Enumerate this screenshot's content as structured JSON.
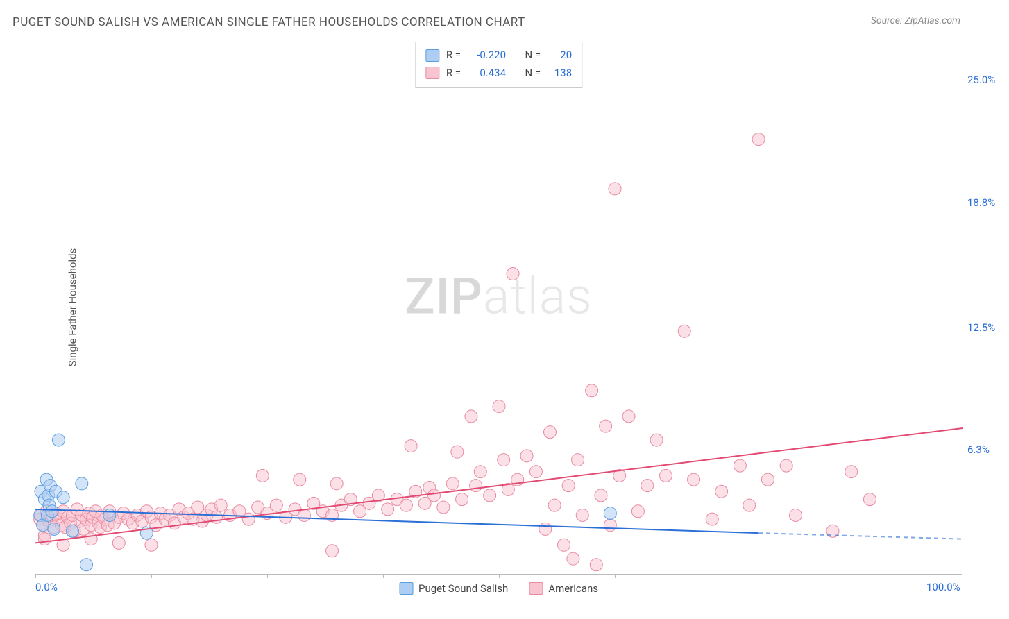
{
  "title": "PUGET SOUND SALISH VS AMERICAN SINGLE FATHER HOUSEHOLDS CORRELATION CHART",
  "source": "Source: ZipAtlas.com",
  "watermark_zip": "ZIP",
  "watermark_atlas": "atlas",
  "y_axis_title": "Single Father Households",
  "chart": {
    "type": "scatter",
    "xlim": [
      0,
      100
    ],
    "ylim": [
      0,
      27
    ],
    "xtick_positions": [
      0,
      12.5,
      25,
      37.5,
      50,
      62.5,
      75,
      87.5,
      100
    ],
    "xtick_labels": {
      "0": "0.0%",
      "100": "100.0%"
    },
    "ytick_positions": [
      6.3,
      12.5,
      18.8,
      25.0
    ],
    "ytick_labels": [
      "6.3%",
      "12.5%",
      "18.8%",
      "25.0%"
    ],
    "grid_color": "#dddddd",
    "axis_color": "#bbbbbb",
    "background_color": "#ffffff",
    "title_color": "#555555",
    "tick_label_color": "#2a6fd6",
    "series": {
      "salish": {
        "label": "Puget Sound Salish",
        "fill": "#aecdf2",
        "stroke": "#5a9de0",
        "fill_opacity": 0.55,
        "marker_radius": 9,
        "R": "-0.220",
        "N": "20",
        "trend": {
          "x1": 0,
          "y1": 3.3,
          "x2": 78,
          "y2": 2.1,
          "dash_extend_to": 100,
          "dash_y2": 1.8,
          "color": "#2a6fd6",
          "width": 2
        },
        "points": [
          [
            0.5,
            3.0
          ],
          [
            0.6,
            4.2
          ],
          [
            0.8,
            2.5
          ],
          [
            1.0,
            3.8
          ],
          [
            1.2,
            4.8
          ],
          [
            1.3,
            3.0
          ],
          [
            1.4,
            4.0
          ],
          [
            1.5,
            3.5
          ],
          [
            1.6,
            4.5
          ],
          [
            1.8,
            3.2
          ],
          [
            2.0,
            2.3
          ],
          [
            2.2,
            4.2
          ],
          [
            2.5,
            6.8
          ],
          [
            3.0,
            3.9
          ],
          [
            4.0,
            2.2
          ],
          [
            5.5,
            0.5
          ],
          [
            8.0,
            3.0
          ],
          [
            12.0,
            2.1
          ],
          [
            5.0,
            4.6
          ],
          [
            62.0,
            3.1
          ]
        ]
      },
      "americans": {
        "label": "Americans",
        "fill": "#f7c4cf",
        "stroke": "#e88aa0",
        "fill_opacity": 0.5,
        "marker_radius": 9,
        "R": "0.434",
        "N": "138",
        "trend": {
          "x1": 0,
          "y1": 1.6,
          "x2": 100,
          "y2": 7.4,
          "color": "#e24a72",
          "width": 2
        },
        "points": [
          [
            0.5,
            2.8
          ],
          [
            0.6,
            3.0
          ],
          [
            0.8,
            2.5
          ],
          [
            1.0,
            2.0
          ],
          [
            1.2,
            3.2
          ],
          [
            1.5,
            2.7
          ],
          [
            1.8,
            3.0
          ],
          [
            2.0,
            2.4
          ],
          [
            2.2,
            3.1
          ],
          [
            2.5,
            2.8
          ],
          [
            2.8,
            2.5
          ],
          [
            3.0,
            3.2
          ],
          [
            3.2,
            2.4
          ],
          [
            3.5,
            2.9
          ],
          [
            3.8,
            2.6
          ],
          [
            4.0,
            3.0
          ],
          [
            4.2,
            2.2
          ],
          [
            4.5,
            3.3
          ],
          [
            4.8,
            2.7
          ],
          [
            5.0,
            3.0
          ],
          [
            5.2,
            2.3
          ],
          [
            5.5,
            2.8
          ],
          [
            5.8,
            3.1
          ],
          [
            6.0,
            2.5
          ],
          [
            6.2,
            2.9
          ],
          [
            6.5,
            3.2
          ],
          [
            6.8,
            2.6
          ],
          [
            7.0,
            2.4
          ],
          [
            7.2,
            3.0
          ],
          [
            7.5,
            2.8
          ],
          [
            7.8,
            2.5
          ],
          [
            8.0,
            3.2
          ],
          [
            8.5,
            2.6
          ],
          [
            9.0,
            2.9
          ],
          [
            9.5,
            3.1
          ],
          [
            10.0,
            2.8
          ],
          [
            10.5,
            2.6
          ],
          [
            11.0,
            3.0
          ],
          [
            11.5,
            2.7
          ],
          [
            12.0,
            3.2
          ],
          [
            12.5,
            2.9
          ],
          [
            13.0,
            2.5
          ],
          [
            13.5,
            3.1
          ],
          [
            14.0,
            2.8
          ],
          [
            14.5,
            3.0
          ],
          [
            15.0,
            2.6
          ],
          [
            15.5,
            3.3
          ],
          [
            16.0,
            2.9
          ],
          [
            16.5,
            3.1
          ],
          [
            17.0,
            2.8
          ],
          [
            17.5,
            3.4
          ],
          [
            18.0,
            2.7
          ],
          [
            18.5,
            3.0
          ],
          [
            19.0,
            3.3
          ],
          [
            19.5,
            2.9
          ],
          [
            20.0,
            3.5
          ],
          [
            21.0,
            3.0
          ],
          [
            22.0,
            3.2
          ],
          [
            23.0,
            2.8
          ],
          [
            24.0,
            3.4
          ],
          [
            24.5,
            5.0
          ],
          [
            25.0,
            3.1
          ],
          [
            26.0,
            3.5
          ],
          [
            27.0,
            2.9
          ],
          [
            28.0,
            3.3
          ],
          [
            28.5,
            4.8
          ],
          [
            29.0,
            3.0
          ],
          [
            30.0,
            3.6
          ],
          [
            31.0,
            3.2
          ],
          [
            32.0,
            3.0
          ],
          [
            32.5,
            4.6
          ],
          [
            33.0,
            3.5
          ],
          [
            34.0,
            3.8
          ],
          [
            35.0,
            3.2
          ],
          [
            36.0,
            3.6
          ],
          [
            37.0,
            4.0
          ],
          [
            38.0,
            3.3
          ],
          [
            39.0,
            3.8
          ],
          [
            40.0,
            3.5
          ],
          [
            40.5,
            6.5
          ],
          [
            41.0,
            4.2
          ],
          [
            42.0,
            3.6
          ],
          [
            42.5,
            4.4
          ],
          [
            43.0,
            4.0
          ],
          [
            44.0,
            3.4
          ],
          [
            45.0,
            4.6
          ],
          [
            45.5,
            6.2
          ],
          [
            46.0,
            3.8
          ],
          [
            47.0,
            8.0
          ],
          [
            47.5,
            4.5
          ],
          [
            48.0,
            5.2
          ],
          [
            49.0,
            4.0
          ],
          [
            50.0,
            8.5
          ],
          [
            50.5,
            5.8
          ],
          [
            51.0,
            4.3
          ],
          [
            51.5,
            15.2
          ],
          [
            52.0,
            4.8
          ],
          [
            53.0,
            6.0
          ],
          [
            54.0,
            5.2
          ],
          [
            55.0,
            2.3
          ],
          [
            55.5,
            7.2
          ],
          [
            56.0,
            3.5
          ],
          [
            57.0,
            1.5
          ],
          [
            57.5,
            4.5
          ],
          [
            58.0,
            0.8
          ],
          [
            58.5,
            5.8
          ],
          [
            59.0,
            3.0
          ],
          [
            60.0,
            9.3
          ],
          [
            60.5,
            0.5
          ],
          [
            61.0,
            4.0
          ],
          [
            61.5,
            7.5
          ],
          [
            62.0,
            2.5
          ],
          [
            62.5,
            19.5
          ],
          [
            63.0,
            5.0
          ],
          [
            64.0,
            8.0
          ],
          [
            65.0,
            3.2
          ],
          [
            66.0,
            4.5
          ],
          [
            67.0,
            6.8
          ],
          [
            68.0,
            5.0
          ],
          [
            70.0,
            12.3
          ],
          [
            71.0,
            4.8
          ],
          [
            73.0,
            2.8
          ],
          [
            74.0,
            4.2
          ],
          [
            76.0,
            5.5
          ],
          [
            77.0,
            3.5
          ],
          [
            78.0,
            22.0
          ],
          [
            79.0,
            4.8
          ],
          [
            81.0,
            5.5
          ],
          [
            82.0,
            3.0
          ],
          [
            86.0,
            2.2
          ],
          [
            88.0,
            5.2
          ],
          [
            90.0,
            3.8
          ],
          [
            12.5,
            1.5
          ],
          [
            1.0,
            1.8
          ],
          [
            3.0,
            1.5
          ],
          [
            6.0,
            1.8
          ],
          [
            9.0,
            1.6
          ],
          [
            32.0,
            1.2
          ]
        ]
      }
    },
    "statbox": {
      "r_label": "R =",
      "n_label": "N ="
    }
  }
}
